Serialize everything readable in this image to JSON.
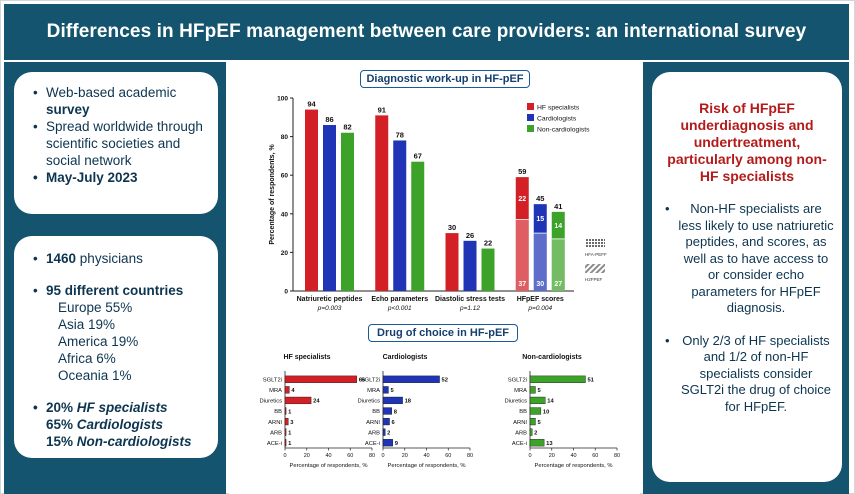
{
  "title": "Differences in HFpEF management between care providers: an international survey",
  "colors": {
    "banner": "#14546e",
    "hf": "#d32027",
    "cardio": "#1f35b5",
    "noncardio": "#3da229",
    "accent_red": "#b31b1b"
  },
  "left_top": {
    "items": [
      [
        "Web-based academic ",
        "survey"
      ],
      [
        "Spread worldwide through scientific societies and social network",
        ""
      ],
      [
        "",
        "May-July 2023"
      ]
    ]
  },
  "left_bottom": {
    "physicians_num": "1460",
    "physicians_txt": " physicians",
    "countries_num": "95 different ",
    "countries_txt": "countries",
    "regions": [
      "Europe 55%",
      "Asia 19%",
      "America 19%",
      "Africa 6%",
      "Oceania 1%"
    ],
    "split": [
      [
        "20% ",
        "HF specialists"
      ],
      [
        "65% ",
        "Cardiologists"
      ],
      [
        "15% ",
        "Non-cardiologists"
      ]
    ]
  },
  "right": {
    "title": "Risk of HFpEF underdiagnosis and undertreatment, particularly among non-HF specialists",
    "points": [
      "Non-HF specialists are less likely to use natriuretic peptides, and scores, as well as to have access to or consider echo parameters for HFpEF diagnosis.",
      "Only 2/3 of HF specialists and 1/2 of non-HF specialists consider SGLT2i the drug of choice for HFpEF."
    ]
  },
  "chart_data": [
    {
      "type": "bar",
      "title": "Diagnostic work-up in HF-pEF",
      "ylabel": "Percentage of respondents, %",
      "ylim": [
        0,
        100
      ],
      "yticks": [
        0,
        20,
        40,
        60,
        80,
        100
      ],
      "categories": [
        "Natriuretic peptides",
        "Echo parameters",
        "Diastolic stress tests",
        "HFpEF scores"
      ],
      "pvalues": [
        "p=0.003",
        "p<0.001",
        "p=1.12",
        "p=0.004"
      ],
      "series": [
        {
          "name": "HF specialists",
          "values": [
            94,
            91,
            30,
            59
          ]
        },
        {
          "name": "Cardiologists",
          "values": [
            86,
            78,
            26,
            45
          ]
        },
        {
          "name": "Non-cardiologists",
          "values": [
            82,
            67,
            22,
            41
          ]
        }
      ],
      "score_split": {
        "HFA-PEFF": [
          22,
          15,
          14
        ],
        "H2FPEF": [
          37,
          30,
          27
        ]
      },
      "hatch_legend": [
        "HFA-PEFF",
        "H2FPEF"
      ]
    },
    {
      "type": "bar",
      "orientation": "horizontal",
      "title": "Drug of choice in HF-pEF",
      "categories": [
        "SGLT2i",
        "MRA",
        "Diuretics",
        "BB",
        "ARNI",
        "ARB",
        "ACE-i"
      ],
      "xlabel": "Percentage of respondents, %",
      "xlim": [
        0,
        80
      ],
      "xticks": [
        0,
        20,
        40,
        60,
        80
      ],
      "panels": [
        {
          "name": "HF specialists",
          "values": [
            66,
            4,
            24,
            1,
            3,
            1,
            1
          ]
        },
        {
          "name": "Cardiologists",
          "values": [
            52,
            5,
            18,
            8,
            6,
            2,
            9
          ]
        },
        {
          "name": "Non-cardiologists",
          "values": [
            51,
            5,
            14,
            10,
            5,
            2,
            13
          ]
        }
      ]
    }
  ]
}
